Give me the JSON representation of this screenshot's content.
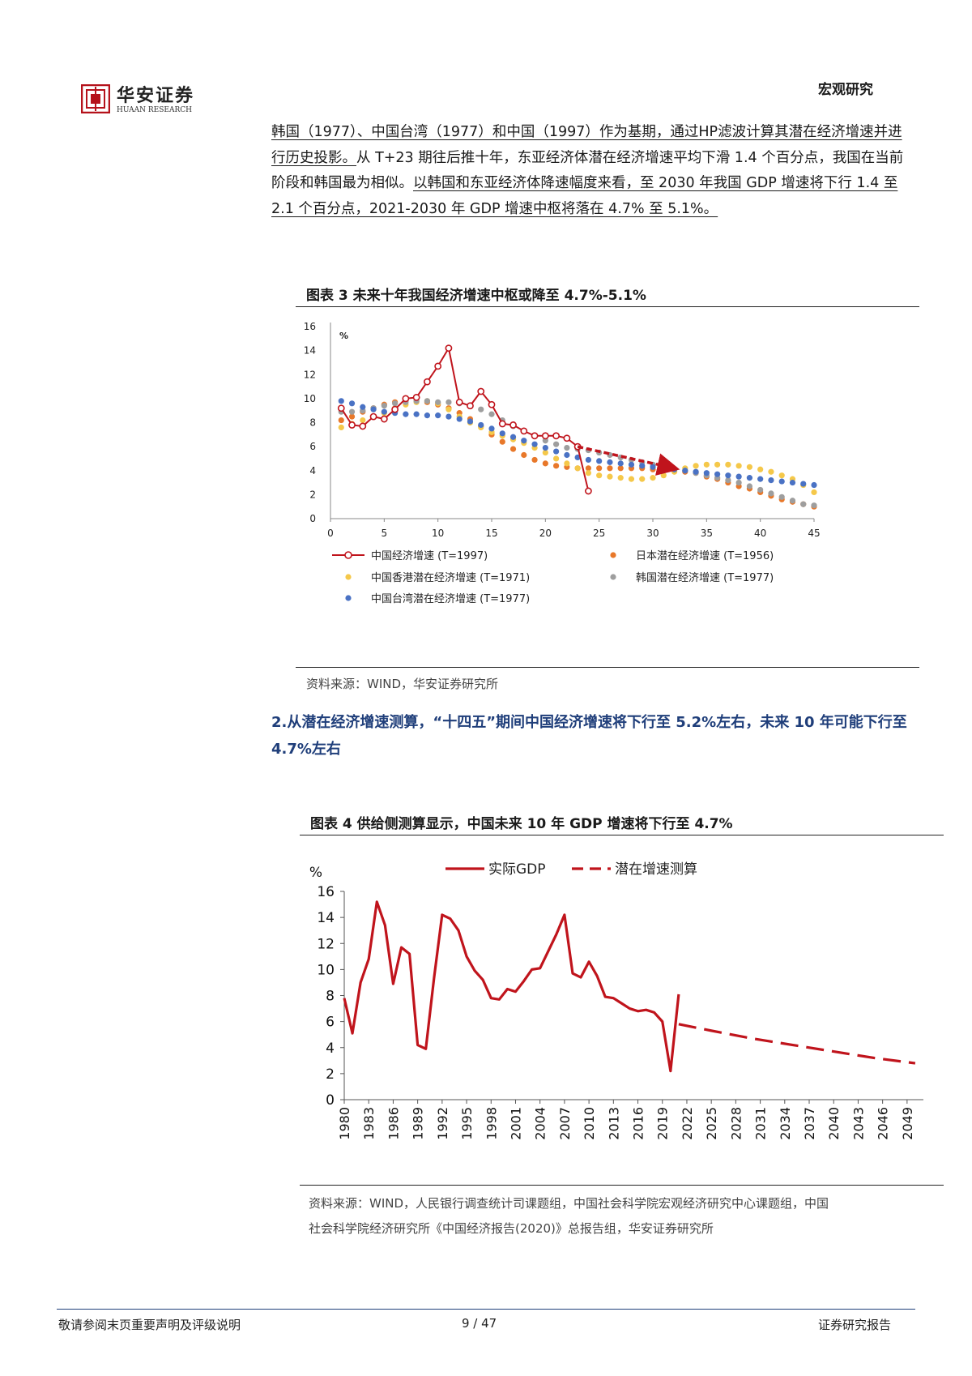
{
  "header": {
    "logo_cn": "华安证券",
    "logo_en": "HUAAN RESEARCH",
    "section": "宏观研究",
    "brand_color": "#b5121b"
  },
  "paragraph": {
    "seg1": "韩国（1977）、中国台湾（1977）和中国（1997）作为基期，通过HP滤波计算其潜在经济增速并进行历史投影。",
    "seg2": "从 T+23 期往后推十年，东亚经济体潜在经济增速平均下滑 1.4 个百分点，我国在当前阶段和韩国最为相似。",
    "seg3": "以韩国和东亚经济体降速幅度来看，至 2030 年我国 GDP 增速将下行 1.4 至 2.1 个百分点，2021-2030 年 GDP 增速中枢将落在 4.7% 至 5.1%。"
  },
  "figure3": {
    "title": "图表 3  未来十年我国经济增速中枢或降至 4.7%-5.1%",
    "source": "资料来源：WIND，华安证券研究所"
  },
  "heading2": "2.从潜在经济增速测算，“十四五”期间中国经济增速将下行至 5.2%左右，未来 10 年可能下行至 4.7%左右",
  "figure4": {
    "title": "图表 4  供给侧测算显示，中国未来 10 年 GDP 增速将下行至 4.7%",
    "source_line1": "资料来源：WIND，人民银行调查统计司课题组，中国社会科学院宏观经济研究中心课题组，中国",
    "source_line2": "社会科学院经济研究所《中国经济报告(2020)》总报告组，华安证券研究所"
  },
  "chart_data": [
    {
      "type": "line",
      "ylabel": "%",
      "xlim": [
        0,
        45
      ],
      "ylim": [
        0,
        16
      ],
      "x_ticks": [
        "0",
        "5",
        "10",
        "15",
        "20",
        "25",
        "30",
        "35",
        "40",
        "45"
      ],
      "y_ticks": [
        "0",
        "2",
        "4",
        "6",
        "8",
        "10",
        "12",
        "14",
        "16"
      ],
      "annotation": "arrow from T≈23 to T≈32 indicating projected decline",
      "series": [
        {
          "name": "中国经济增速 (T=1997)",
          "style": "line-circle",
          "color": "#c0141c",
          "x": [
            1,
            2,
            3,
            4,
            5,
            6,
            7,
            8,
            9,
            10,
            11,
            12,
            13,
            14,
            15,
            16,
            17,
            18,
            19,
            20,
            21,
            22,
            23,
            24
          ],
          "values": [
            9.2,
            7.8,
            7.7,
            8.5,
            8.3,
            9.1,
            10.0,
            10.1,
            11.4,
            12.7,
            14.2,
            9.7,
            9.4,
            10.6,
            9.5,
            7.9,
            7.8,
            7.3,
            6.9,
            6.9,
            6.9,
            6.7,
            6.0,
            2.3
          ]
        },
        {
          "name": "日本潜在经济增速 (T=1956)",
          "style": "dots",
          "color": "#e8782a",
          "x": [
            1,
            2,
            3,
            4,
            5,
            6,
            7,
            8,
            9,
            10,
            11,
            12,
            13,
            14,
            15,
            16,
            17,
            18,
            19,
            20,
            21,
            22,
            23,
            24,
            25,
            26,
            27,
            28,
            29,
            30,
            31,
            32,
            33,
            34,
            35,
            36,
            37,
            38,
            39,
            40,
            41,
            42,
            43,
            44,
            45
          ],
          "values": [
            8.2,
            8.5,
            8.9,
            9.2,
            9.5,
            9.7,
            9.8,
            9.8,
            9.7,
            9.5,
            9.2,
            8.8,
            8.3,
            7.7,
            7.0,
            6.4,
            5.8,
            5.3,
            4.9,
            4.6,
            4.4,
            4.3,
            4.2,
            4.2,
            4.2,
            4.2,
            4.2,
            4.2,
            4.2,
            4.1,
            4.1,
            4.0,
            3.9,
            3.8,
            3.5,
            3.3,
            3.0,
            2.7,
            2.5,
            2.2,
            1.9,
            1.6,
            1.4,
            1.2,
            1.0
          ]
        },
        {
          "name": "中国香港潜在经济增速 (T=1971)",
          "style": "dots",
          "color": "#f5c84a",
          "x": [
            1,
            2,
            3,
            4,
            5,
            6,
            7,
            8,
            9,
            10,
            11,
            12,
            13,
            14,
            15,
            16,
            17,
            18,
            19,
            20,
            21,
            22,
            23,
            24,
            25,
            26,
            27,
            28,
            29,
            30,
            31,
            32,
            33,
            34,
            35,
            36,
            37,
            38,
            39,
            40,
            41,
            42,
            43,
            44,
            45
          ],
          "values": [
            7.6,
            7.9,
            8.2,
            8.5,
            8.8,
            9.2,
            9.5,
            9.7,
            9.8,
            9.6,
            9.1,
            8.5,
            8.0,
            7.6,
            7.2,
            6.9,
            6.6,
            6.3,
            5.9,
            5.5,
            5.0,
            4.6,
            4.2,
            3.8,
            3.6,
            3.5,
            3.4,
            3.3,
            3.3,
            3.4,
            3.6,
            3.9,
            4.2,
            4.4,
            4.5,
            4.5,
            4.5,
            4.4,
            4.3,
            4.1,
            3.9,
            3.6,
            3.3,
            2.8,
            2.2
          ]
        },
        {
          "name": "韩国潜在经济增速 (T=1977)",
          "style": "dots",
          "color": "#9e9e9e",
          "x": [
            1,
            2,
            3,
            4,
            5,
            6,
            7,
            8,
            9,
            10,
            11,
            12,
            13,
            14,
            15,
            16,
            17,
            18,
            19,
            20,
            21,
            22,
            23,
            24,
            25,
            26,
            27,
            28,
            29,
            30,
            31,
            32,
            33,
            34,
            35,
            36,
            37,
            38,
            39,
            40,
            41,
            42,
            43,
            44,
            45
          ],
          "values": [
            8.9,
            8.9,
            9.0,
            9.2,
            9.4,
            9.6,
            9.7,
            9.8,
            9.8,
            9.7,
            9.7,
            9.6,
            9.4,
            9.1,
            8.7,
            8.2,
            7.7,
            7.3,
            6.9,
            6.5,
            6.2,
            5.9,
            5.8,
            5.7,
            5.5,
            5.3,
            5.1,
            4.9,
            4.7,
            4.5,
            4.3,
            4.1,
            4.0,
            3.8,
            3.6,
            3.4,
            3.2,
            3.0,
            2.7,
            2.4,
            2.1,
            1.8,
            1.5,
            1.2,
            1.1
          ]
        },
        {
          "name": "中国台湾潜在经济增速 (T=1977)",
          "style": "dots",
          "color": "#4a72c4",
          "x": [
            1,
            2,
            3,
            4,
            5,
            6,
            7,
            8,
            9,
            10,
            11,
            12,
            13,
            14,
            15,
            16,
            17,
            18,
            19,
            20,
            21,
            22,
            23,
            24,
            25,
            26,
            27,
            28,
            29,
            30,
            31,
            32,
            33,
            34,
            35,
            36,
            37,
            38,
            39,
            40,
            41,
            42,
            43,
            44,
            45
          ],
          "values": [
            9.8,
            9.6,
            9.3,
            9.1,
            8.9,
            8.8,
            8.7,
            8.7,
            8.6,
            8.6,
            8.5,
            8.3,
            8.1,
            7.8,
            7.5,
            7.1,
            6.8,
            6.5,
            6.2,
            5.9,
            5.6,
            5.3,
            5.1,
            4.9,
            4.8,
            4.7,
            4.6,
            4.5,
            4.4,
            4.3,
            4.2,
            4.1,
            4.0,
            3.9,
            3.8,
            3.7,
            3.6,
            3.5,
            3.4,
            3.3,
            3.2,
            3.1,
            3.0,
            2.9,
            2.8
          ]
        }
      ]
    },
    {
      "type": "line",
      "ylabel": "%",
      "ylim": [
        0,
        16
      ],
      "y_ticks": [
        "0",
        "2",
        "4",
        "6",
        "8",
        "10",
        "12",
        "14",
        "16"
      ],
      "x_ticks": [
        "1980",
        "1983",
        "1986",
        "1989",
        "1992",
        "1995",
        "1998",
        "2001",
        "2004",
        "2007",
        "2010",
        "2013",
        "2016",
        "2019",
        "2022",
        "2025",
        "2028",
        "2031",
        "2034",
        "2037",
        "2040",
        "2043",
        "2046",
        "2049"
      ],
      "legend": [
        "实际GDP",
        "潜在增速测算"
      ],
      "series": [
        {
          "name": "实际GDP",
          "style": "solid",
          "color": "#c0141c",
          "x": [
            1980,
            1981,
            1982,
            1983,
            1984,
            1985,
            1986,
            1987,
            1988,
            1989,
            1990,
            1991,
            1992,
            1993,
            1994,
            1995,
            1996,
            1997,
            1998,
            1999,
            2000,
            2001,
            2002,
            2003,
            2004,
            2005,
            2006,
            2007,
            2008,
            2009,
            2010,
            2011,
            2012,
            2013,
            2014,
            2015,
            2016,
            2017,
            2018,
            2019,
            2020,
            2021
          ],
          "values": [
            7.8,
            5.1,
            9.0,
            10.8,
            15.2,
            13.4,
            8.9,
            11.7,
            11.2,
            4.2,
            3.9,
            9.3,
            14.2,
            13.9,
            13.0,
            11.0,
            9.9,
            9.2,
            7.8,
            7.7,
            8.5,
            8.3,
            9.1,
            10.0,
            10.1,
            11.4,
            12.7,
            14.2,
            9.7,
            9.4,
            10.6,
            9.5,
            7.9,
            7.8,
            7.4,
            7.0,
            6.8,
            6.9,
            6.7,
            6.0,
            2.2,
            8.1
          ]
        },
        {
          "name": "潜在增速测算",
          "style": "dashed",
          "color": "#c0141c",
          "x": [
            2021,
            2025,
            2030,
            2035,
            2040,
            2045,
            2050
          ],
          "values": [
            5.8,
            5.3,
            4.7,
            4.2,
            3.7,
            3.2,
            2.8
          ]
        }
      ]
    }
  ]
}
